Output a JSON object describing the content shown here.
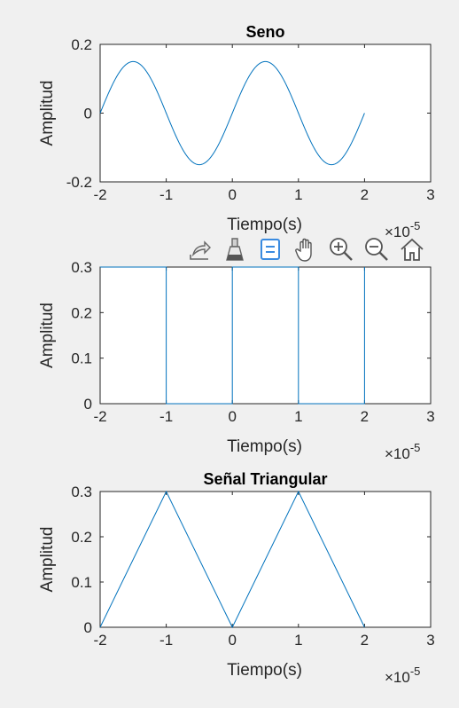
{
  "figure": {
    "background": "#f0f0f0",
    "line_color": "#0072bd"
  },
  "toolbar": {
    "buttons": [
      {
        "icon": "export-icon",
        "active": false
      },
      {
        "icon": "brush-icon",
        "active": false
      },
      {
        "icon": "datatips-icon",
        "active": true
      },
      {
        "icon": "pan-hand-icon",
        "active": false
      },
      {
        "icon": "zoom-in-icon",
        "active": false
      },
      {
        "icon": "zoom-out-icon",
        "active": false
      },
      {
        "icon": "home-icon",
        "active": false
      }
    ]
  },
  "chart_data": [
    {
      "type": "line",
      "title": "Seno",
      "xlabel": "Tiempo(s)",
      "ylabel": "Amplitud",
      "x_exponent_label": "×10",
      "x_exponent": "-5",
      "xlim": [
        -2e-05,
        3e-05
      ],
      "ylim": [
        -0.2,
        0.2
      ],
      "xticks": [
        "-2",
        "-1",
        "0",
        "1",
        "2",
        "3"
      ],
      "yticks": [
        "-0.2",
        "0",
        "0.2"
      ],
      "series": [
        {
          "function": "0.15*sin(pi*t/1e-5)",
          "x_range": [
            -2e-05,
            2e-05
          ],
          "amplitude": 0.15,
          "period": 2e-05,
          "x": [
            -2e-05,
            -1.5e-05,
            -1e-05,
            -5e-06,
            0,
            5e-06,
            1e-05,
            1.5e-05,
            2e-05
          ],
          "y": [
            0,
            0.15,
            0,
            -0.15,
            0,
            0.15,
            0,
            -0.15,
            0
          ]
        }
      ]
    },
    {
      "type": "line",
      "title": "",
      "xlabel": "Tiempo(s)",
      "ylabel": "Amplitud",
      "x_exponent_label": "×10",
      "x_exponent": "-5",
      "xlim": [
        -2e-05,
        3e-05
      ],
      "ylim": [
        0,
        0.3
      ],
      "xticks": [
        "-2",
        "-1",
        "0",
        "1",
        "2",
        "3"
      ],
      "yticks": [
        "0",
        "0.1",
        "0.2",
        "0.3"
      ],
      "series": [
        {
          "x": [
            -2e-05,
            -1e-05,
            -1e-05,
            0,
            0,
            1e-05,
            1e-05,
            2e-05,
            2e-05
          ],
          "y": [
            0.3,
            0.3,
            0,
            0,
            0.3,
            0.3,
            0,
            0,
            0.3
          ]
        }
      ]
    },
    {
      "type": "line",
      "title": "Señal Triangular",
      "xlabel": "Tiempo(s)",
      "ylabel": "Amplitud",
      "x_exponent_label": "×10",
      "x_exponent": "-5",
      "xlim": [
        -2e-05,
        3e-05
      ],
      "ylim": [
        0,
        0.3
      ],
      "xticks": [
        "-2",
        "-1",
        "0",
        "1",
        "2",
        "3"
      ],
      "yticks": [
        "0",
        "0.1",
        "0.2",
        "0.3"
      ],
      "series": [
        {
          "x": [
            -2e-05,
            -1e-05,
            0,
            1e-05,
            2e-05
          ],
          "y": [
            0,
            0.3,
            0,
            0.3,
            0
          ]
        }
      ]
    }
  ]
}
